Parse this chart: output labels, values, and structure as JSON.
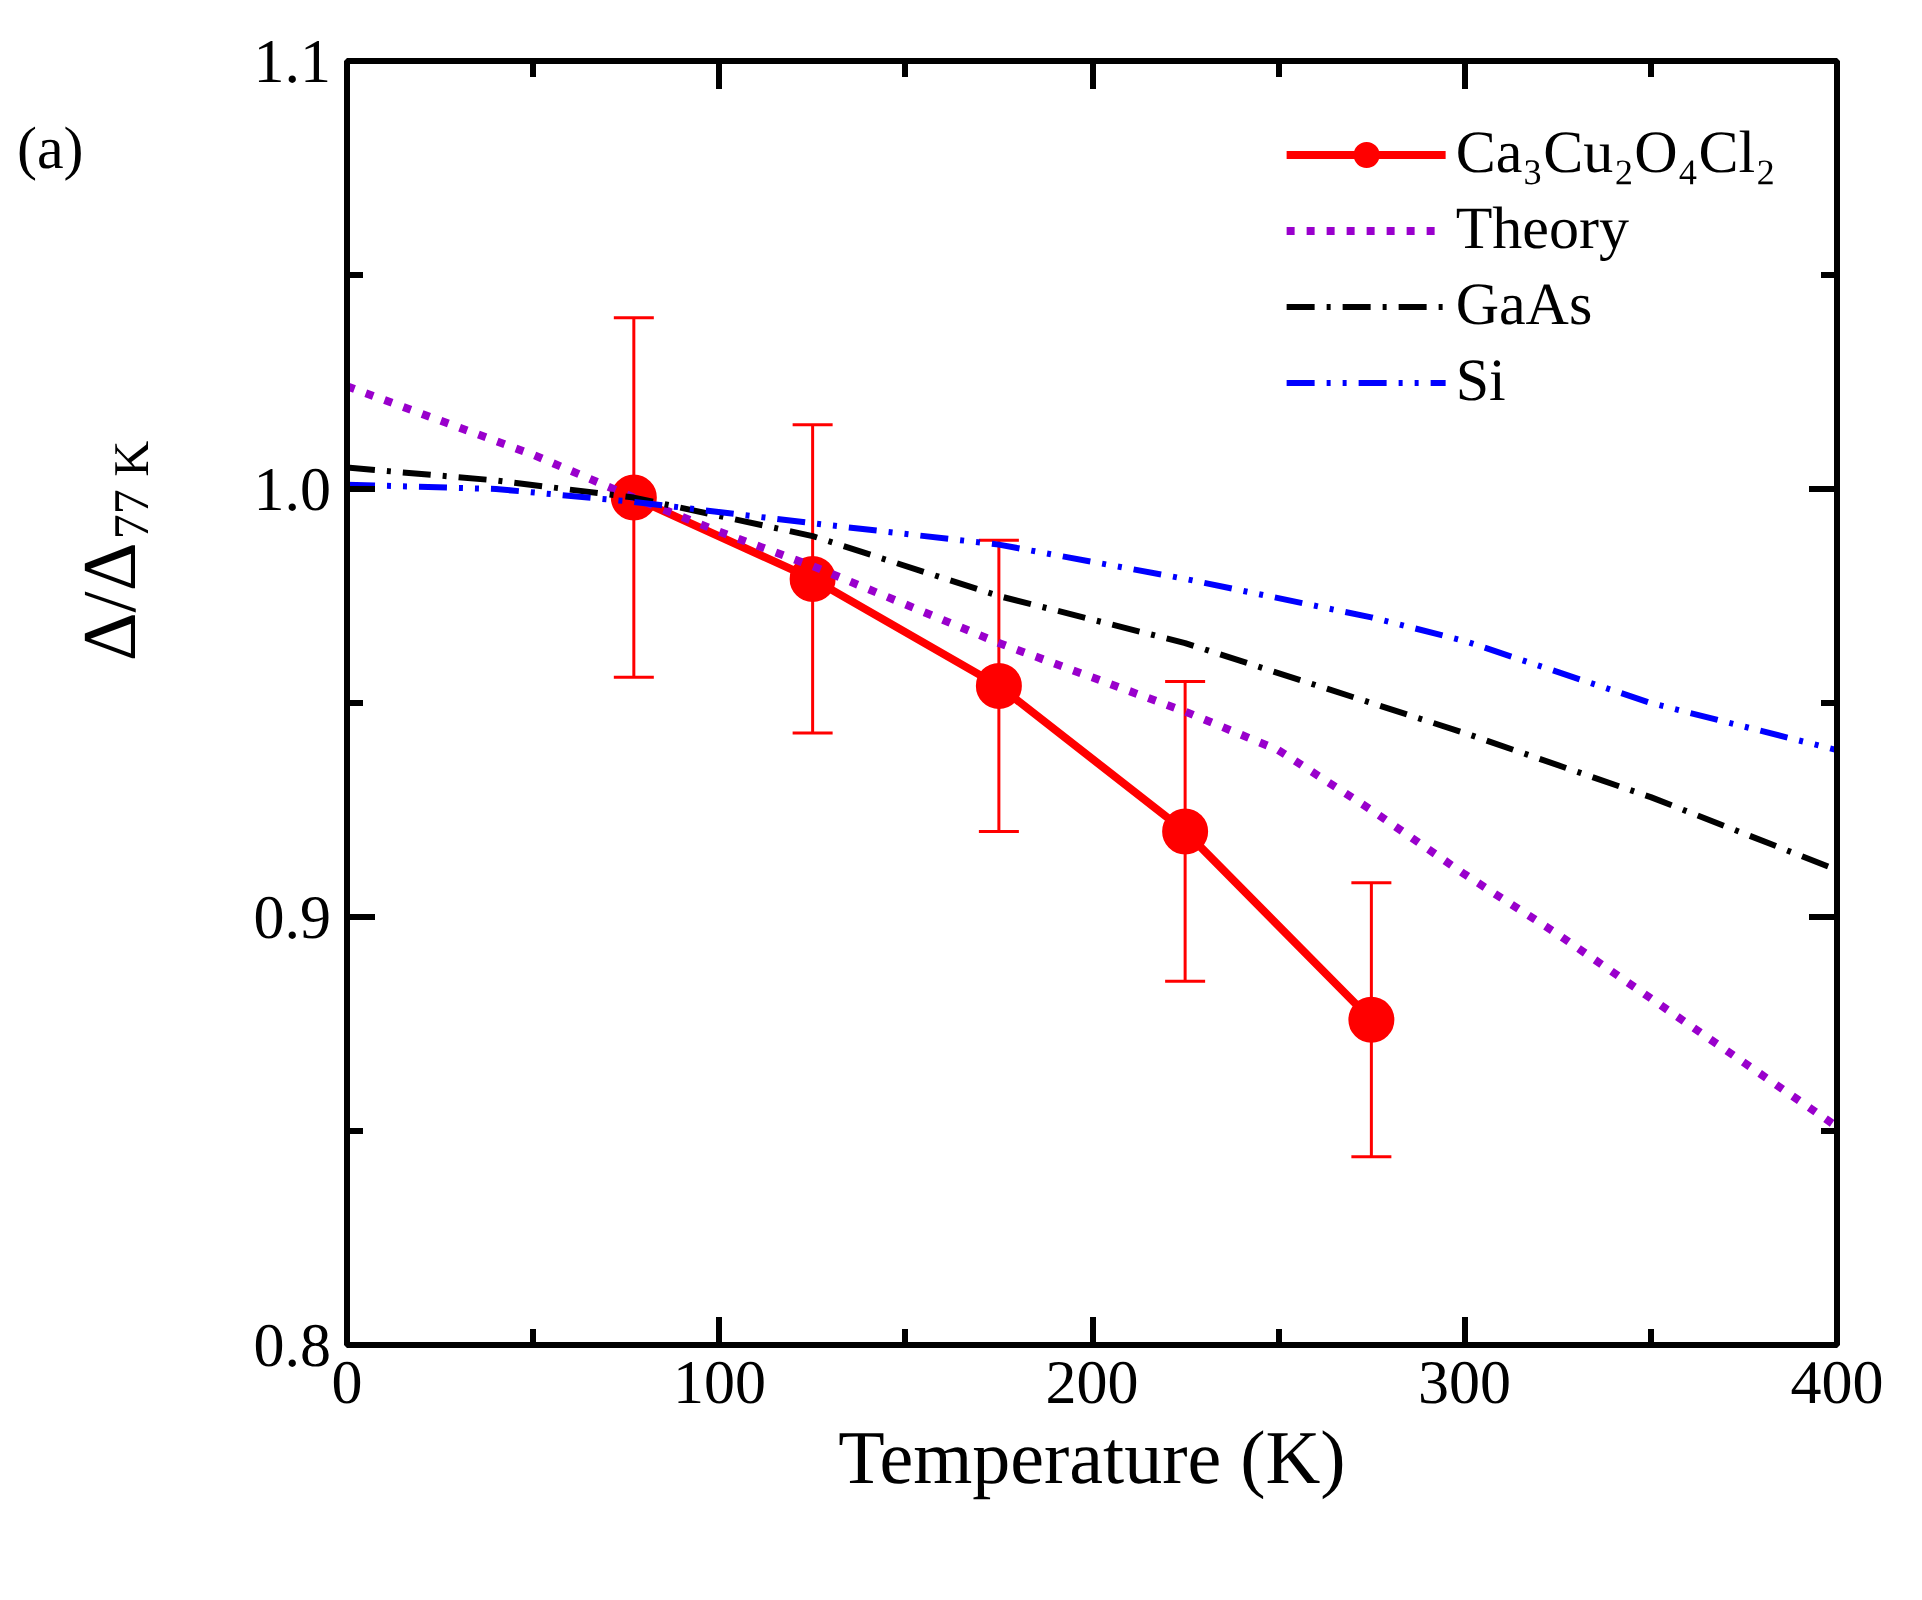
{
  "chart_data": {
    "type": "line",
    "xlabel": "Temperature (K)",
    "ylabel": "Δ/Δ$_{77 K}$",
    "annotations": [
      "(a)"
    ],
    "xlim": [
      0,
      400
    ],
    "ylim": [
      0.8,
      1.1
    ],
    "xticks": [
      0,
      100,
      200,
      300,
      400
    ],
    "yticks": [
      0.8,
      0.9,
      {
        "value": 1.0,
        "label": "1.0"
      },
      1.1
    ],
    "grid": false,
    "legend": "top right",
    "series": [
      {
        "name": "Ca₃Cu₂O₄Cl₂",
        "color": "#ff0000",
        "marker": "circle",
        "line_style": "solid",
        "x": [
          77,
          125,
          175,
          225,
          275
        ],
        "values": [
          0.998,
          0.979,
          0.954,
          0.92,
          0.876
        ],
        "errors": [
          0.042,
          0.036,
          0.034,
          0.035,
          0.032
        ]
      },
      {
        "name": "Theory",
        "color": "#9900cc",
        "marker": "none",
        "line_style": "dotted",
        "x": [
          0,
          50,
          77,
          100,
          125,
          150,
          175,
          200,
          225,
          250,
          275,
          300,
          325,
          350,
          375,
          400
        ],
        "values": [
          1.024,
          1.008,
          0.998,
          0.99,
          0.982,
          0.973,
          0.964,
          0.956,
          0.948,
          0.939,
          0.925,
          0.91,
          0.896,
          0.881,
          0.866,
          0.851
        ]
      },
      {
        "name": "GaAs",
        "color": "#000000",
        "marker": "none",
        "line_style": "dashdot",
        "x": [
          0,
          40,
          77,
          125,
          175,
          225,
          275,
          300,
          350,
          400
        ],
        "values": [
          1.005,
          1.002,
          0.998,
          0.989,
          0.975,
          0.964,
          0.95,
          0.943,
          0.928,
          0.911
        ]
      },
      {
        "name": "Si",
        "color": "#0000ff",
        "marker": "none",
        "line_style": "dashdotdot",
        "x": [
          0,
          40,
          77,
          125,
          175,
          225,
          275,
          300,
          350,
          400
        ],
        "values": [
          1.001,
          1.0,
          0.997,
          0.992,
          0.987,
          0.979,
          0.97,
          0.9645,
          0.95,
          0.939
        ]
      }
    ]
  }
}
